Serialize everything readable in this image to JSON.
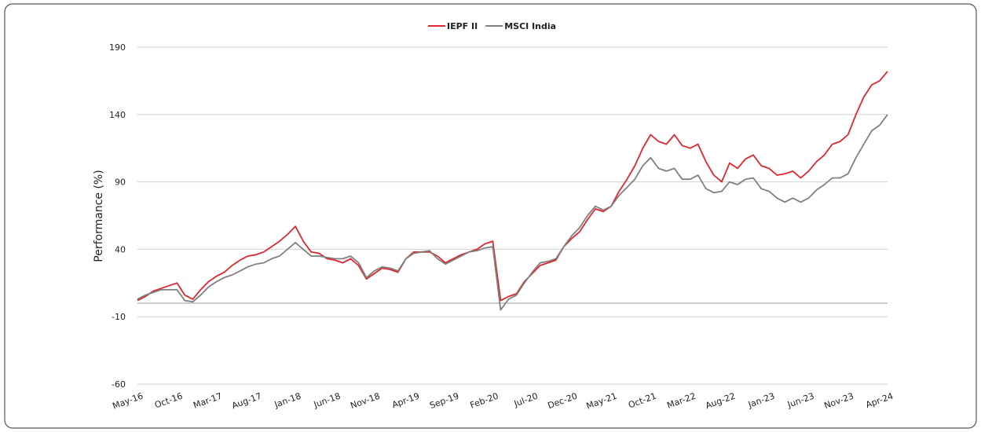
{
  "chart_data": {
    "type": "line",
    "y_label": "Performance (%)",
    "categories": [
      "May-16",
      null,
      null,
      null,
      null,
      "Oct-16",
      null,
      null,
      null,
      null,
      "Mar-17",
      null,
      null,
      null,
      null,
      "Aug-17",
      null,
      null,
      null,
      null,
      "Jan-18",
      null,
      null,
      null,
      null,
      "Jun-18",
      null,
      null,
      null,
      null,
      "Nov-18",
      null,
      null,
      null,
      null,
      "Apr-19",
      null,
      null,
      null,
      null,
      "Sep-19",
      null,
      null,
      null,
      null,
      "Feb-20",
      null,
      null,
      null,
      null,
      "Jul-20",
      null,
      null,
      null,
      null,
      "Dec-20",
      null,
      null,
      null,
      null,
      "May-21",
      null,
      null,
      null,
      null,
      "Oct-21",
      null,
      null,
      null,
      null,
      "Mar-22",
      null,
      null,
      null,
      null,
      "Aug-22",
      null,
      null,
      null,
      null,
      "Jan-23",
      null,
      null,
      null,
      null,
      "Jun-23",
      null,
      null,
      null,
      null,
      "Nov-23",
      null,
      null,
      null,
      null,
      "Apr-24"
    ],
    "series": [
      {
        "name": "IEPF II",
        "color": "#e0262e",
        "values": [
          2,
          5,
          9,
          11,
          13,
          15,
          6,
          3,
          10,
          16,
          20,
          23,
          28,
          32,
          35,
          36,
          38,
          42,
          46,
          51,
          57,
          46,
          38,
          37,
          33,
          32,
          30,
          33,
          28,
          18,
          22,
          26,
          25,
          23,
          33,
          38,
          38,
          38,
          35,
          30,
          33,
          36,
          38,
          40,
          44,
          46,
          2,
          5,
          7,
          16,
          22,
          28,
          30,
          32,
          42,
          48,
          53,
          62,
          70,
          68,
          72,
          83,
          92,
          102,
          115,
          125,
          120,
          118,
          125,
          117,
          115,
          118,
          105,
          95,
          90,
          104,
          100,
          107,
          110,
          102,
          100,
          95,
          96,
          98,
          93,
          98,
          105,
          110,
          118,
          120,
          125,
          140,
          153,
          162,
          165,
          172
        ]
      },
      {
        "name": "MSCI India",
        "color": "#808080",
        "values": [
          3,
          6,
          8,
          10,
          10,
          10,
          2,
          1,
          6,
          12,
          16,
          19,
          21,
          24,
          27,
          29,
          30,
          33,
          35,
          40,
          45,
          40,
          35,
          35,
          34,
          33,
          33,
          35,
          30,
          19,
          24,
          27,
          26,
          24,
          33,
          37,
          38,
          39,
          33,
          29,
          32,
          35,
          38,
          39,
          41,
          42,
          -5,
          3,
          6,
          15,
          23,
          30,
          31,
          33,
          42,
          50,
          56,
          65,
          72,
          69,
          72,
          80,
          86,
          92,
          102,
          108,
          100,
          98,
          100,
          92,
          92,
          95,
          85,
          82,
          83,
          90,
          88,
          92,
          93,
          85,
          83,
          78,
          75,
          78,
          75,
          78,
          84,
          88,
          93,
          93,
          96,
          108,
          118,
          128,
          132,
          140
        ]
      }
    ],
    "ylim": [
      -60,
      190
    ],
    "yticks": [
      -60,
      -10,
      40,
      90,
      140,
      190
    ],
    "grid": true,
    "legend": "top"
  }
}
